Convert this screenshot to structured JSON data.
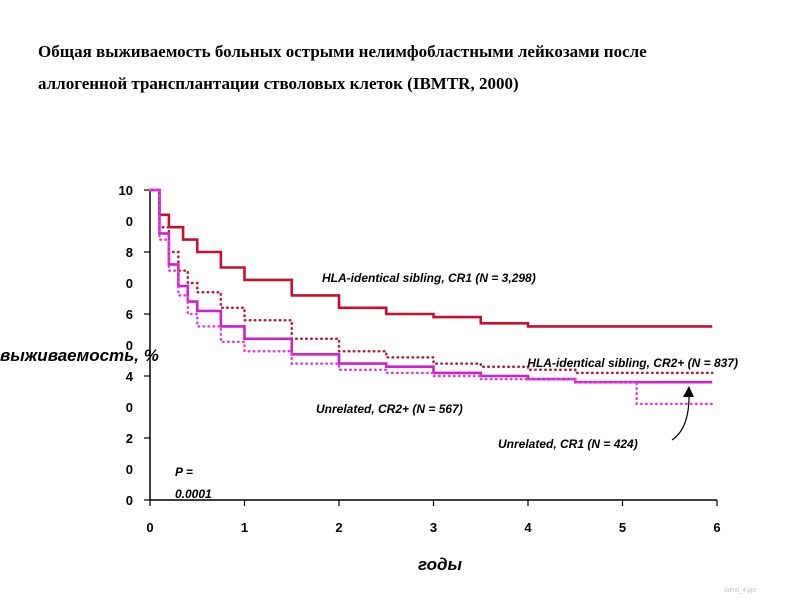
{
  "title_line1": "Общая выживаемость больных острыми нелимфобластными лейкозами после",
  "title_line2": "аллогенной трансплантации стволовых клеток (IBMTR, 2000)",
  "watermark": "5dm0_4.ppt",
  "chart_data": {
    "type": "line",
    "xlabel": "годы",
    "ylabel": "выживаемость, %",
    "xlim": [
      0,
      6
    ],
    "ylim": [
      0,
      100
    ],
    "x_ticks": [
      "0",
      "1",
      "2",
      "3",
      "4",
      "5",
      "6"
    ],
    "y_ticks": [
      {
        "value": 100,
        "lines": [
          "10",
          "0"
        ]
      },
      {
        "value": 80,
        "lines": [
          "8",
          "0"
        ]
      },
      {
        "value": 60,
        "lines": [
          "6",
          "0"
        ]
      },
      {
        "value": 40,
        "lines": [
          "4",
          "0"
        ]
      },
      {
        "value": 20,
        "lines": [
          "2",
          "0"
        ]
      },
      {
        "value": 0,
        "lines": [
          "0"
        ]
      }
    ],
    "pvalue_lines": [
      "P =",
      "0.0001"
    ],
    "series": [
      {
        "name": "HLA-identical sibling, CR1 (N = 3,298)",
        "color": "#c8102e",
        "style": "solid",
        "x": [
          0,
          0.1,
          0.2,
          0.35,
          0.5,
          0.75,
          1,
          1.5,
          2,
          2.5,
          3,
          3.5,
          4,
          4.5,
          5,
          5.5,
          5.95
        ],
        "y": [
          100,
          92,
          88,
          84,
          80,
          75,
          71,
          66,
          62,
          60,
          59,
          57,
          56,
          56,
          56,
          56,
          56
        ]
      },
      {
        "name": "HLA-identical sibling, CR2+ (N = 837)",
        "color": "#b0203a",
        "style": "dotted",
        "x": [
          0,
          0.1,
          0.2,
          0.3,
          0.4,
          0.5,
          0.75,
          1,
          1.5,
          2,
          2.5,
          3,
          3.5,
          4,
          4.5,
          5,
          5.5,
          5.95
        ],
        "y": [
          100,
          88,
          80,
          74,
          70,
          67,
          62,
          58,
          52,
          48,
          46,
          44,
          43,
          42,
          41,
          41,
          41,
          41
        ]
      },
      {
        "name": "Unrelated, CR2+ (N = 567)",
        "color": "#cc22cc",
        "style": "solid",
        "x": [
          0,
          0.1,
          0.2,
          0.3,
          0.4,
          0.5,
          0.75,
          1,
          1.5,
          2,
          2.5,
          3,
          3.5,
          4,
          4.5,
          5,
          5.5,
          5.95
        ],
        "y": [
          100,
          86,
          76,
          69,
          64,
          61,
          56,
          52,
          47,
          44,
          43,
          41,
          40,
          39,
          38,
          38,
          38,
          38
        ]
      },
      {
        "name": "Unrelated, CR1 (N = 424)",
        "color": "#e040e0",
        "style": "dotted",
        "x": [
          0,
          0.1,
          0.2,
          0.3,
          0.4,
          0.5,
          0.75,
          1,
          1.5,
          2,
          2.5,
          3,
          3.5,
          4,
          4.5,
          5,
          5.15,
          5.5,
          5.95
        ],
        "y": [
          100,
          84,
          74,
          66,
          60,
          56,
          51,
          48,
          44,
          42,
          41,
          40,
          39,
          39,
          38,
          38,
          31,
          31,
          31
        ]
      }
    ]
  }
}
